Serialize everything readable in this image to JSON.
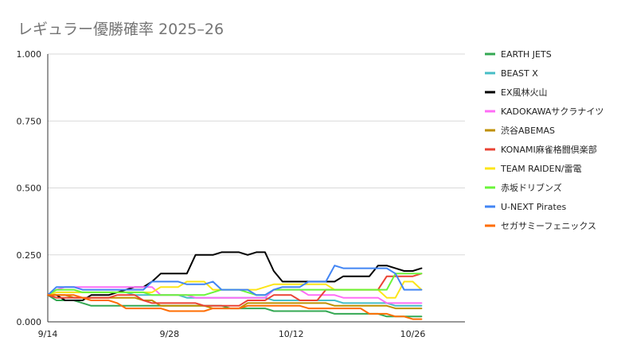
{
  "chart_data": {
    "type": "line",
    "title": "レギュラー優勝確率 2025–26",
    "xlabel": "",
    "ylabel": "",
    "ylim": [
      0,
      1
    ],
    "yticks": [
      "0.000",
      "0.250",
      "0.500",
      "0.750",
      "1.000"
    ],
    "ytick_values": [
      0,
      0.25,
      0.5,
      0.75,
      1
    ],
    "xtick_labels": [
      "9/14",
      "9/28",
      "10/12",
      "10/26"
    ],
    "xtick_values": [
      0,
      14,
      28,
      42
    ],
    "x_range": [
      0,
      48
    ],
    "grid": "horizontal",
    "legend": "right",
    "x": [
      0,
      1,
      2,
      3,
      4,
      5,
      6,
      7,
      8,
      9,
      10,
      11,
      12,
      13,
      14,
      15,
      16,
      17,
      18,
      19,
      20,
      21,
      22,
      23,
      24,
      25,
      26,
      27,
      28,
      29,
      30,
      31,
      32,
      33,
      34,
      35,
      36,
      37,
      38,
      39,
      40,
      41,
      42,
      43
    ],
    "series": [
      {
        "name": "EARTH JETS",
        "color": "#34a853",
        "values": [
          0.1,
          0.08,
          0.08,
          0.08,
          0.07,
          0.06,
          0.06,
          0.06,
          0.06,
          0.06,
          0.06,
          0.06,
          0.06,
          0.06,
          0.06,
          0.06,
          0.06,
          0.06,
          0.06,
          0.06,
          0.06,
          0.05,
          0.05,
          0.05,
          0.05,
          0.05,
          0.04,
          0.04,
          0.04,
          0.04,
          0.04,
          0.04,
          0.04,
          0.03,
          0.03,
          0.03,
          0.03,
          0.03,
          0.03,
          0.02,
          0.02,
          0.02,
          0.02,
          0.02
        ]
      },
      {
        "name": "BEAST X",
        "color": "#46bdc6",
        "values": [
          0.1,
          0.11,
          0.11,
          0.11,
          0.11,
          0.11,
          0.11,
          0.11,
          0.11,
          0.11,
          0.1,
          0.1,
          0.1,
          0.1,
          0.1,
          0.1,
          0.09,
          0.09,
          0.09,
          0.09,
          0.09,
          0.09,
          0.09,
          0.09,
          0.09,
          0.09,
          0.08,
          0.08,
          0.08,
          0.08,
          0.08,
          0.08,
          0.08,
          0.08,
          0.07,
          0.07,
          0.07,
          0.07,
          0.07,
          0.07,
          0.06,
          0.06,
          0.06,
          0.06
        ]
      },
      {
        "name": "EX風林火山",
        "color": "#000000",
        "values": [
          0.1,
          0.1,
          0.08,
          0.08,
          0.08,
          0.1,
          0.1,
          0.1,
          0.11,
          0.12,
          0.13,
          0.13,
          0.15,
          0.18,
          0.18,
          0.18,
          0.18,
          0.25,
          0.25,
          0.25,
          0.26,
          0.26,
          0.26,
          0.25,
          0.26,
          0.26,
          0.19,
          0.15,
          0.15,
          0.15,
          0.15,
          0.15,
          0.15,
          0.15,
          0.17,
          0.17,
          0.17,
          0.17,
          0.21,
          0.21,
          0.2,
          0.19,
          0.19,
          0.2
        ]
      },
      {
        "name": "KADOKAWAサクラナイツ",
        "color": "#ff6df6",
        "values": [
          0.1,
          0.12,
          0.13,
          0.13,
          0.13,
          0.13,
          0.13,
          0.13,
          0.13,
          0.13,
          0.13,
          0.13,
          0.13,
          0.1,
          0.1,
          0.1,
          0.1,
          0.09,
          0.09,
          0.09,
          0.09,
          0.09,
          0.09,
          0.09,
          0.09,
          0.09,
          0.12,
          0.12,
          0.12,
          0.12,
          0.1,
          0.1,
          0.1,
          0.1,
          0.09,
          0.09,
          0.09,
          0.09,
          0.09,
          0.07,
          0.07,
          0.07,
          0.07,
          0.07
        ]
      },
      {
        "name": "渋谷ABEMAS",
        "color": "#bf9000",
        "values": [
          0.1,
          0.1,
          0.1,
          0.09,
          0.09,
          0.09,
          0.09,
          0.09,
          0.09,
          0.09,
          0.09,
          0.08,
          0.08,
          0.06,
          0.06,
          0.06,
          0.06,
          0.06,
          0.06,
          0.05,
          0.05,
          0.05,
          0.05,
          0.07,
          0.07,
          0.07,
          0.07,
          0.07,
          0.07,
          0.07,
          0.07,
          0.07,
          0.07,
          0.06,
          0.06,
          0.06,
          0.06,
          0.06,
          0.06,
          0.06,
          0.05,
          0.05,
          0.05,
          0.05
        ]
      },
      {
        "name": "KONAMI麻雀格闘倶楽部",
        "color": "#ea4335",
        "values": [
          0.1,
          0.09,
          0.09,
          0.09,
          0.09,
          0.09,
          0.09,
          0.09,
          0.1,
          0.1,
          0.1,
          0.08,
          0.07,
          0.07,
          0.07,
          0.07,
          0.07,
          0.07,
          0.06,
          0.06,
          0.06,
          0.06,
          0.06,
          0.08,
          0.08,
          0.08,
          0.1,
          0.1,
          0.1,
          0.08,
          0.08,
          0.08,
          0.12,
          0.12,
          0.12,
          0.12,
          0.12,
          0.12,
          0.12,
          0.17,
          0.17,
          0.17,
          0.17,
          0.18
        ]
      },
      {
        "name": "TEAM RAIDEN/雷電",
        "color": "#fce518",
        "values": [
          0.1,
          0.11,
          0.11,
          0.11,
          0.11,
          0.11,
          0.11,
          0.11,
          0.11,
          0.11,
          0.11,
          0.11,
          0.11,
          0.13,
          0.13,
          0.13,
          0.15,
          0.15,
          0.15,
          0.12,
          0.12,
          0.12,
          0.12,
          0.12,
          0.12,
          0.13,
          0.14,
          0.14,
          0.14,
          0.14,
          0.14,
          0.14,
          0.14,
          0.12,
          0.12,
          0.12,
          0.12,
          0.12,
          0.12,
          0.09,
          0.09,
          0.15,
          0.15,
          0.12
        ]
      },
      {
        "name": "赤坂ドリブンズ",
        "color": "#6af53a",
        "values": [
          0.1,
          0.12,
          0.12,
          0.12,
          0.11,
          0.11,
          0.11,
          0.11,
          0.11,
          0.11,
          0.11,
          0.11,
          0.1,
          0.1,
          0.1,
          0.1,
          0.1,
          0.1,
          0.1,
          0.11,
          0.12,
          0.12,
          0.12,
          0.11,
          0.1,
          0.1,
          0.12,
          0.12,
          0.12,
          0.12,
          0.12,
          0.12,
          0.12,
          0.12,
          0.12,
          0.12,
          0.12,
          0.12,
          0.12,
          0.12,
          0.18,
          0.18,
          0.18,
          0.18
        ]
      },
      {
        "name": "U-NEXT Pirates",
        "color": "#4285f4",
        "values": [
          0.1,
          0.13,
          0.13,
          0.13,
          0.12,
          0.12,
          0.12,
          0.12,
          0.12,
          0.12,
          0.12,
          0.12,
          0.15,
          0.15,
          0.15,
          0.15,
          0.14,
          0.14,
          0.14,
          0.15,
          0.12,
          0.12,
          0.12,
          0.12,
          0.1,
          0.1,
          0.12,
          0.13,
          0.13,
          0.13,
          0.15,
          0.15,
          0.15,
          0.21,
          0.2,
          0.2,
          0.2,
          0.2,
          0.2,
          0.2,
          0.18,
          0.12,
          0.12,
          0.12
        ]
      },
      {
        "name": "セガサミーフェニックス",
        "color": "#ff6d01",
        "values": [
          0.1,
          0.1,
          0.1,
          0.1,
          0.09,
          0.08,
          0.08,
          0.08,
          0.07,
          0.05,
          0.05,
          0.05,
          0.05,
          0.05,
          0.04,
          0.04,
          0.04,
          0.04,
          0.04,
          0.05,
          0.05,
          0.05,
          0.05,
          0.06,
          0.06,
          0.06,
          0.06,
          0.06,
          0.06,
          0.06,
          0.05,
          0.05,
          0.05,
          0.05,
          0.05,
          0.05,
          0.05,
          0.03,
          0.03,
          0.03,
          0.02,
          0.02,
          0.01,
          0.01
        ]
      }
    ]
  }
}
